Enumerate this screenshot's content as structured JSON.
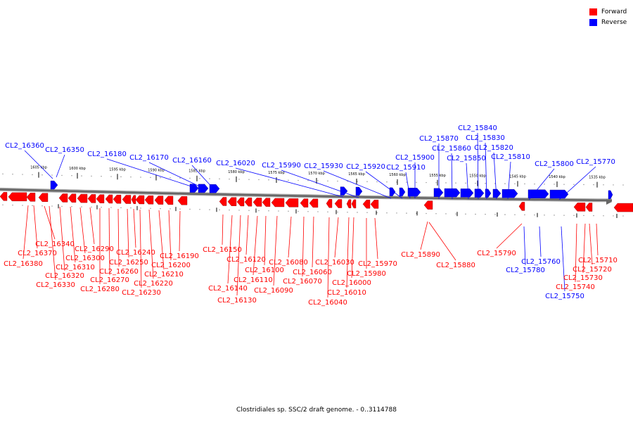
{
  "caption": "Clostridiales sp. SSC/2 draft genome. - 0..3114788",
  "legend": [
    {
      "label": "Forward",
      "color": "#ff0000"
    },
    {
      "label": "Reverse",
      "color": "#0000ff"
    }
  ],
  "colors": {
    "forward": "#ff0000",
    "reverse": "#0000ff",
    "backbone": "#666666"
  },
  "scale_labels": [
    "1605 kbp",
    "1600 kbp",
    "1595 kbp",
    "1590 kbp",
    "1585 kbp",
    "1580 kbp",
    "1575 kbp",
    "1570 kbp",
    "1565 kbp",
    "1560 kbp",
    "1555 kbp",
    "1550 kbp",
    "1545 kbp",
    "1540 kbp",
    "1535 kbp"
  ],
  "reverse_genes": [
    "CL2_16360",
    "CL2_16350",
    "CL2_16180",
    "CL2_16170",
    "CL2_16160",
    "CL2_16020",
    "CL2_15990",
    "CL2_15930",
    "CL2_15920",
    "CL2_15910",
    "CL2_15900",
    "CL2_15870",
    "CL2_15860",
    "CL2_15850",
    "CL2_15840",
    "CL2_15830",
    "CL2_15820",
    "CL2_15810",
    "CL2_15800",
    "CL2_15770",
    "CL2_15760",
    "CL2_15780",
    "CL2_15750"
  ],
  "forward_genes": [
    "CL2_16380",
    "CL2_16370",
    "CL2_16340",
    "CL2_16330",
    "CL2_16320",
    "CL2_16310",
    "CL2_16300",
    "CL2_16290",
    "CL2_16280",
    "CL2_16270",
    "CL2_16260",
    "CL2_16250",
    "CL2_16240",
    "CL2_16230",
    "CL2_16220",
    "CL2_16210",
    "CL2_16200",
    "CL2_16190",
    "CL2_16150",
    "CL2_16140",
    "CL2_16130",
    "CL2_16120",
    "CL2_16110",
    "CL2_16100",
    "CL2_16090",
    "CL2_16080",
    "CL2_16070",
    "CL2_16060",
    "CL2_16040",
    "CL2_16030",
    "CL2_16010",
    "CL2_16000",
    "CL2_15980",
    "CL2_15970",
    "CL2_15890",
    "CL2_15880",
    "CL2_15790",
    "CL2_15740",
    "CL2_15730",
    "CL2_15720",
    "CL2_15710"
  ]
}
